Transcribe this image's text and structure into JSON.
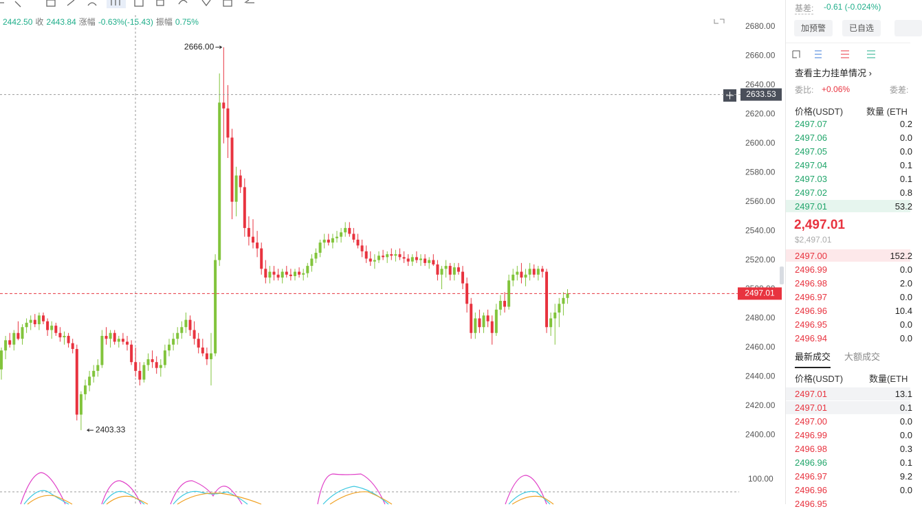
{
  "quote_bar": {
    "open_value": "2442.50",
    "close_label": "收",
    "close_value": "2443.84",
    "change_label": "涨幅",
    "change_value": "-0.63%(-15.43)",
    "amplitude_label": "振幅",
    "amplitude_value": "0.75%"
  },
  "chart_data": {
    "type": "candlestick",
    "up_color": "#82c43c",
    "down_color": "#e8333f",
    "ylim": [
      2378,
      2688
    ],
    "yticks": [
      {
        "value": 2400,
        "label": "2400.00"
      },
      {
        "value": 2420,
        "label": "2420.00"
      },
      {
        "value": 2440,
        "label": "2440.00"
      },
      {
        "value": 2460,
        "label": "2460.00"
      },
      {
        "value": 2480,
        "label": "2480.00"
      },
      {
        "value": 2500,
        "label": "2500.00"
      },
      {
        "value": 2520,
        "label": "2520.00"
      },
      {
        "value": 2540,
        "label": "2540.00"
      },
      {
        "value": 2560,
        "label": "2560.00"
      },
      {
        "value": 2580,
        "label": "2580.00"
      },
      {
        "value": 2600,
        "label": "2600.00"
      },
      {
        "value": 2620,
        "label": "2620.00"
      },
      {
        "value": 2640,
        "label": "2640.00"
      },
      {
        "value": 2660,
        "label": "2660.00"
      },
      {
        "value": 2680,
        "label": "2680.00"
      }
    ],
    "grid": false,
    "high_label": {
      "value": 2666,
      "label": "2666.00"
    },
    "low_label": {
      "value": 2403.33,
      "label": "2403.33"
    },
    "crosshair_price": 2633.53,
    "last_price": 2497.01,
    "indicator_tick": {
      "value": 100,
      "label": "100.00"
    },
    "ohlc": [
      [
        2445,
        2460,
        2438,
        2458
      ],
      [
        2458,
        2468,
        2452,
        2465
      ],
      [
        2465,
        2470,
        2460,
        2462
      ],
      [
        2462,
        2472,
        2458,
        2470
      ],
      [
        2470,
        2478,
        2465,
        2466
      ],
      [
        2466,
        2476,
        2462,
        2474
      ],
      [
        2474,
        2480,
        2470,
        2477
      ],
      [
        2477,
        2482,
        2472,
        2479
      ],
      [
        2479,
        2483,
        2474,
        2476
      ],
      [
        2476,
        2484,
        2472,
        2482
      ],
      [
        2482,
        2484,
        2476,
        2478
      ],
      [
        2478,
        2480,
        2468,
        2472
      ],
      [
        2472,
        2478,
        2466,
        2475
      ],
      [
        2475,
        2477,
        2468,
        2470
      ],
      [
        2470,
        2474,
        2464,
        2467
      ],
      [
        2467,
        2471,
        2462,
        2468
      ],
      [
        2468,
        2470,
        2460,
        2463
      ],
      [
        2463,
        2466,
        2456,
        2459
      ],
      [
        2459,
        2462,
        2410,
        2414
      ],
      [
        2414,
        2430,
        2403.33,
        2428
      ],
      [
        2428,
        2438,
        2424,
        2434
      ],
      [
        2434,
        2444,
        2430,
        2440
      ],
      [
        2440,
        2448,
        2436,
        2444
      ],
      [
        2444,
        2452,
        2440,
        2448
      ],
      [
        2448,
        2472,
        2446,
        2468
      ],
      [
        2468,
        2474,
        2462,
        2466
      ],
      [
        2466,
        2472,
        2460,
        2470
      ],
      [
        2470,
        2472,
        2462,
        2464
      ],
      [
        2464,
        2468,
        2460,
        2466
      ],
      [
        2466,
        2470,
        2462,
        2464
      ],
      [
        2464,
        2468,
        2458,
        2462
      ],
      [
        2462,
        2465,
        2448,
        2450
      ],
      [
        2450,
        2460,
        2440,
        2444
      ],
      [
        2444,
        2450,
        2434,
        2438
      ],
      [
        2438,
        2450,
        2436,
        2448
      ],
      [
        2448,
        2456,
        2444,
        2452
      ],
      [
        2452,
        2458,
        2446,
        2450
      ],
      [
        2450,
        2454,
        2442,
        2446
      ],
      [
        2446,
        2452,
        2440,
        2448
      ],
      [
        2448,
        2462,
        2446,
        2458
      ],
      [
        2458,
        2466,
        2454,
        2462
      ],
      [
        2462,
        2470,
        2458,
        2466
      ],
      [
        2466,
        2474,
        2462,
        2470
      ],
      [
        2470,
        2478,
        2466,
        2474
      ],
      [
        2474,
        2484,
        2470,
        2479
      ],
      [
        2479,
        2482,
        2468,
        2472
      ],
      [
        2472,
        2478,
        2462,
        2466
      ],
      [
        2466,
        2470,
        2456,
        2460
      ],
      [
        2460,
        2466,
        2454,
        2456
      ],
      [
        2456,
        2460,
        2448,
        2452
      ],
      [
        2452,
        2470,
        2434,
        2456
      ],
      [
        2456,
        2524,
        2454,
        2520
      ],
      [
        2520,
        2648,
        2516,
        2628
      ],
      [
        2628,
        2666,
        2600,
        2624
      ],
      [
        2624,
        2640,
        2590,
        2604
      ],
      [
        2604,
        2610,
        2548,
        2560
      ],
      [
        2560,
        2584,
        2550,
        2578
      ],
      [
        2578,
        2582,
        2566,
        2570
      ],
      [
        2570,
        2576,
        2536,
        2542
      ],
      [
        2542,
        2550,
        2530,
        2536
      ],
      [
        2536,
        2548,
        2528,
        2532
      ],
      [
        2532,
        2540,
        2522,
        2528
      ],
      [
        2528,
        2532,
        2510,
        2514
      ],
      [
        2514,
        2520,
        2504,
        2508
      ],
      [
        2508,
        2516,
        2504,
        2512
      ],
      [
        2512,
        2516,
        2506,
        2510
      ],
      [
        2510,
        2514,
        2506,
        2508
      ],
      [
        2508,
        2514,
        2504,
        2512
      ],
      [
        2512,
        2516,
        2508,
        2510
      ],
      [
        2510,
        2514,
        2506,
        2509
      ],
      [
        2509,
        2514,
        2506,
        2512
      ],
      [
        2512,
        2515,
        2508,
        2510
      ],
      [
        2510,
        2514,
        2506,
        2511
      ],
      [
        2511,
        2518,
        2508,
        2516
      ],
      [
        2516,
        2524,
        2512,
        2521
      ],
      [
        2521,
        2528,
        2518,
        2525
      ],
      [
        2525,
        2534,
        2522,
        2532
      ],
      [
        2532,
        2538,
        2528,
        2534
      ],
      [
        2534,
        2538,
        2530,
        2532
      ],
      [
        2532,
        2538,
        2528,
        2535
      ],
      [
        2535,
        2540,
        2532,
        2536
      ],
      [
        2536,
        2542,
        2532,
        2539
      ],
      [
        2539,
        2546,
        2536,
        2542
      ],
      [
        2542,
        2546,
        2536,
        2538
      ],
      [
        2538,
        2542,
        2532,
        2534
      ],
      [
        2534,
        2538,
        2528,
        2530
      ],
      [
        2530,
        2534,
        2522,
        2526
      ],
      [
        2526,
        2530,
        2518,
        2521
      ],
      [
        2521,
        2526,
        2516,
        2519
      ],
      [
        2519,
        2524,
        2514,
        2520
      ],
      [
        2520,
        2526,
        2518,
        2523
      ],
      [
        2523,
        2527,
        2520,
        2522
      ],
      [
        2522,
        2526,
        2518,
        2524
      ],
      [
        2524,
        2528,
        2520,
        2523
      ],
      [
        2523,
        2527,
        2519,
        2524
      ],
      [
        2524,
        2528,
        2520,
        2522
      ],
      [
        2522,
        2526,
        2518,
        2521
      ],
      [
        2521,
        2524,
        2516,
        2519
      ],
      [
        2519,
        2524,
        2516,
        2522
      ],
      [
        2522,
        2526,
        2518,
        2520
      ],
      [
        2520,
        2524,
        2516,
        2521
      ],
      [
        2521,
        2524,
        2516,
        2518
      ],
      [
        2518,
        2522,
        2514,
        2520
      ],
      [
        2520,
        2524,
        2516,
        2517
      ],
      [
        2517,
        2520,
        2506,
        2510
      ],
      [
        2510,
        2516,
        2500,
        2514
      ],
      [
        2514,
        2520,
        2508,
        2516
      ],
      [
        2516,
        2518,
        2506,
        2510
      ],
      [
        2510,
        2518,
        2506,
        2515
      ],
      [
        2515,
        2518,
        2510,
        2512
      ],
      [
        2512,
        2516,
        2500,
        2504
      ],
      [
        2504,
        2508,
        2484,
        2490
      ],
      [
        2490,
        2494,
        2466,
        2470
      ],
      [
        2470,
        2484,
        2466,
        2480
      ],
      [
        2480,
        2486,
        2470,
        2474
      ],
      [
        2474,
        2484,
        2470,
        2482
      ],
      [
        2482,
        2486,
        2474,
        2478
      ],
      [
        2478,
        2482,
        2462,
        2470
      ],
      [
        2470,
        2490,
        2468,
        2486
      ],
      [
        2486,
        2496,
        2482,
        2492
      ],
      [
        2492,
        2498,
        2484,
        2488
      ],
      [
        2488,
        2510,
        2486,
        2506
      ],
      [
        2506,
        2514,
        2502,
        2510
      ],
      [
        2510,
        2516,
        2506,
        2512
      ],
      [
        2512,
        2518,
        2504,
        2508
      ],
      [
        2508,
        2514,
        2502,
        2510
      ],
      [
        2510,
        2518,
        2506,
        2514
      ],
      [
        2514,
        2517,
        2508,
        2510
      ],
      [
        2510,
        2516,
        2506,
        2514
      ],
      [
        2514,
        2516,
        2508,
        2512
      ],
      [
        2512,
        2514,
        2470,
        2474
      ],
      [
        2474,
        2484,
        2468,
        2480
      ],
      [
        2480,
        2490,
        2462,
        2484
      ],
      [
        2484,
        2494,
        2474,
        2490
      ],
      [
        2490,
        2498,
        2482,
        2494
      ],
      [
        2494,
        2500,
        2490,
        2497.01
      ]
    ]
  },
  "order_panel": {
    "basis_label": "基差:",
    "basis_value": "-0.61 (-0.024%)",
    "buttons": [
      "加预警",
      "已自选"
    ],
    "depth_link": "查看主力挂单情况",
    "ratio_label": "委比:",
    "ratio_value": "+0.06%",
    "diff_label": "委差:",
    "book_header": [
      "价格(USDT)",
      "数量 (ETH"
    ],
    "asks": [
      [
        "2497.07",
        "0.2"
      ],
      [
        "2497.06",
        "0.0"
      ],
      [
        "2497.05",
        "0.0"
      ],
      [
        "2497.04",
        "0.1"
      ],
      [
        "2497.03",
        "0.1"
      ],
      [
        "2497.02",
        "0.8"
      ],
      [
        "2497.01",
        "53.2"
      ]
    ],
    "last_price": "2,497.01",
    "last_price_usd": "$2,497.01",
    "bids": [
      [
        "2497.00",
        "152.2"
      ],
      [
        "2496.99",
        "0.0"
      ],
      [
        "2496.98",
        "2.0"
      ],
      [
        "2496.97",
        "0.0"
      ],
      [
        "2496.96",
        "10.4"
      ],
      [
        "2496.95",
        "0.0"
      ],
      [
        "2496.94",
        "0.0"
      ]
    ],
    "tabs": [
      "最新成交",
      "大额成交"
    ],
    "trades_header": [
      "价格(USDT)",
      "数量(ETH"
    ],
    "trades": [
      {
        "price": "2497.01",
        "qty": "13.1",
        "color": "#e8333f"
      },
      {
        "price": "2497.01",
        "qty": "0.1",
        "color": "#e8333f"
      },
      {
        "price": "2497.00",
        "qty": "0.0",
        "color": "#e8333f"
      },
      {
        "price": "2496.99",
        "qty": "0.0",
        "color": "#e8333f"
      },
      {
        "price": "2496.98",
        "qty": "0.3",
        "color": "#e8333f"
      },
      {
        "price": "2496.96",
        "qty": "0.1",
        "color": "#20a56a"
      },
      {
        "price": "2496.97",
        "qty": "9.2",
        "color": "#e8333f"
      },
      {
        "price": "2496.96",
        "qty": "0.0",
        "color": "#e8333f"
      },
      {
        "price": "2496.95",
        "color": "#e8333f"
      }
    ]
  }
}
